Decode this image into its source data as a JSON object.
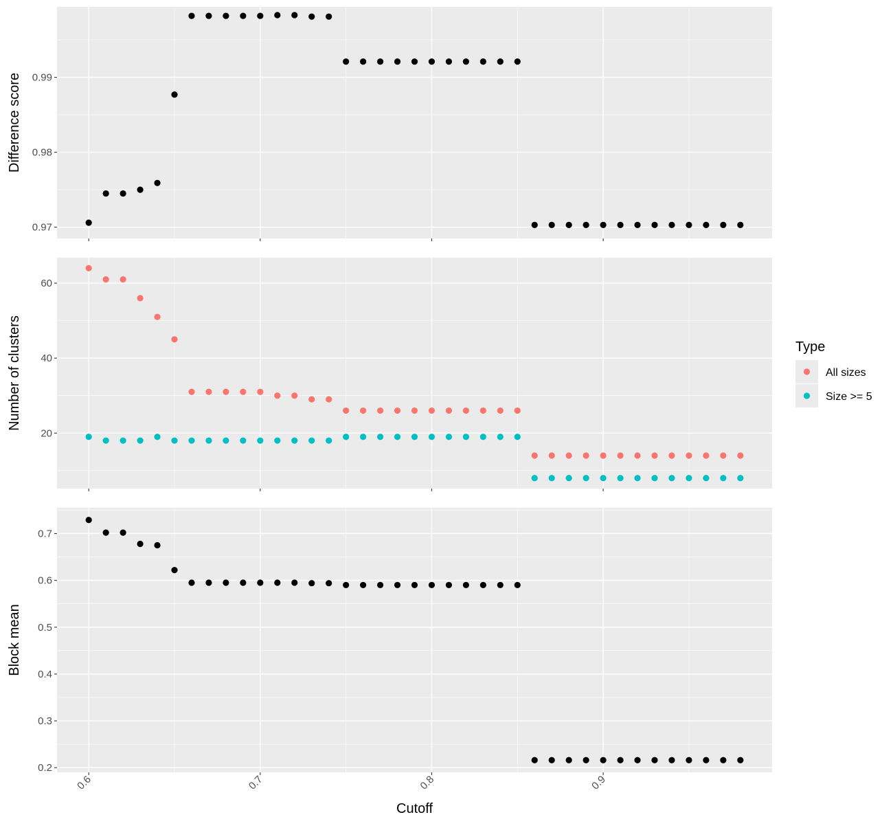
{
  "xlabel": "Cutoff",
  "x_ticks": [
    0.6,
    0.7,
    0.8,
    0.9
  ],
  "x_tick_labels": [
    "0.6",
    "0.7",
    "0.8",
    "0.9"
  ],
  "legend": {
    "title": "Type",
    "entries": [
      {
        "label": "All sizes",
        "color": "#F8766D"
      },
      {
        "label": "Size >= 5",
        "color": "#00BFC4"
      }
    ]
  },
  "colors": {
    "panel_bg": "#EBEBEB",
    "grid": "#FFFFFF",
    "point_default": "#000000"
  },
  "chart_data": [
    {
      "type": "scatter",
      "ylabel": "Difference score",
      "xlim": [
        0.5815,
        0.9985
      ],
      "ylim": [
        0.9685,
        0.9994
      ],
      "y_ticks": [
        0.97,
        0.98,
        0.99
      ],
      "y_tick_labels": [
        "0.97",
        "0.98",
        "0.99"
      ],
      "series": [
        {
          "color": "#000000",
          "points": [
            [
              0.6,
              0.9706
            ],
            [
              0.61,
              0.9745
            ],
            [
              0.62,
              0.9745
            ],
            [
              0.63,
              0.975
            ],
            [
              0.64,
              0.9759
            ],
            [
              0.65,
              0.9877
            ],
            [
              0.66,
              0.9982
            ],
            [
              0.67,
              0.9982
            ],
            [
              0.68,
              0.9982
            ],
            [
              0.69,
              0.9982
            ],
            [
              0.7,
              0.9982
            ],
            [
              0.71,
              0.9983
            ],
            [
              0.72,
              0.9983
            ],
            [
              0.73,
              0.9981
            ],
            [
              0.74,
              0.9981
            ],
            [
              0.75,
              0.9921
            ],
            [
              0.76,
              0.9921
            ],
            [
              0.77,
              0.9921
            ],
            [
              0.78,
              0.9921
            ],
            [
              0.79,
              0.9921
            ],
            [
              0.8,
              0.9921
            ],
            [
              0.81,
              0.9921
            ],
            [
              0.82,
              0.9921
            ],
            [
              0.83,
              0.9921
            ],
            [
              0.84,
              0.9921
            ],
            [
              0.85,
              0.9921
            ],
            [
              0.86,
              0.9703
            ],
            [
              0.87,
              0.9703
            ],
            [
              0.88,
              0.9703
            ],
            [
              0.89,
              0.9703
            ],
            [
              0.9,
              0.9703
            ],
            [
              0.91,
              0.9703
            ],
            [
              0.92,
              0.9703
            ],
            [
              0.93,
              0.9703
            ],
            [
              0.94,
              0.9703
            ],
            [
              0.95,
              0.9703
            ],
            [
              0.96,
              0.9703
            ],
            [
              0.97,
              0.9703
            ],
            [
              0.98,
              0.9703
            ]
          ]
        }
      ]
    },
    {
      "type": "scatter",
      "ylabel": "Number of clusters",
      "xlim": [
        0.5815,
        0.9985
      ],
      "ylim": [
        5.2,
        66.8
      ],
      "y_ticks": [
        20,
        40,
        60
      ],
      "y_tick_labels": [
        "20",
        "40",
        "60"
      ],
      "series": [
        {
          "name": "All sizes",
          "color": "#F8766D",
          "points": [
            [
              0.6,
              64
            ],
            [
              0.61,
              61
            ],
            [
              0.62,
              61
            ],
            [
              0.63,
              56
            ],
            [
              0.64,
              51
            ],
            [
              0.65,
              45
            ],
            [
              0.66,
              31
            ],
            [
              0.67,
              31
            ],
            [
              0.68,
              31
            ],
            [
              0.69,
              31
            ],
            [
              0.7,
              31
            ],
            [
              0.71,
              30
            ],
            [
              0.72,
              30
            ],
            [
              0.73,
              29
            ],
            [
              0.74,
              29
            ],
            [
              0.75,
              26
            ],
            [
              0.76,
              26
            ],
            [
              0.77,
              26
            ],
            [
              0.78,
              26
            ],
            [
              0.79,
              26
            ],
            [
              0.8,
              26
            ],
            [
              0.81,
              26
            ],
            [
              0.82,
              26
            ],
            [
              0.83,
              26
            ],
            [
              0.84,
              26
            ],
            [
              0.85,
              26
            ],
            [
              0.86,
              14
            ],
            [
              0.87,
              14
            ],
            [
              0.88,
              14
            ],
            [
              0.89,
              14
            ],
            [
              0.9,
              14
            ],
            [
              0.91,
              14
            ],
            [
              0.92,
              14
            ],
            [
              0.93,
              14
            ],
            [
              0.94,
              14
            ],
            [
              0.95,
              14
            ],
            [
              0.96,
              14
            ],
            [
              0.97,
              14
            ],
            [
              0.98,
              14
            ]
          ]
        },
        {
          "name": "Size >= 5",
          "color": "#00BFC4",
          "points": [
            [
              0.6,
              19
            ],
            [
              0.61,
              18
            ],
            [
              0.62,
              18
            ],
            [
              0.63,
              18
            ],
            [
              0.64,
              19
            ],
            [
              0.65,
              18
            ],
            [
              0.66,
              18
            ],
            [
              0.67,
              18
            ],
            [
              0.68,
              18
            ],
            [
              0.69,
              18
            ],
            [
              0.7,
              18
            ],
            [
              0.71,
              18
            ],
            [
              0.72,
              18
            ],
            [
              0.73,
              18
            ],
            [
              0.74,
              18
            ],
            [
              0.75,
              19
            ],
            [
              0.76,
              19
            ],
            [
              0.77,
              19
            ],
            [
              0.78,
              19
            ],
            [
              0.79,
              19
            ],
            [
              0.8,
              19
            ],
            [
              0.81,
              19
            ],
            [
              0.82,
              19
            ],
            [
              0.83,
              19
            ],
            [
              0.84,
              19
            ],
            [
              0.85,
              19
            ],
            [
              0.86,
              8
            ],
            [
              0.87,
              8
            ],
            [
              0.88,
              8
            ],
            [
              0.89,
              8
            ],
            [
              0.9,
              8
            ],
            [
              0.91,
              8
            ],
            [
              0.92,
              8
            ],
            [
              0.93,
              8
            ],
            [
              0.94,
              8
            ],
            [
              0.95,
              8
            ],
            [
              0.96,
              8
            ],
            [
              0.97,
              8
            ],
            [
              0.98,
              8
            ]
          ]
        }
      ]
    },
    {
      "type": "scatter",
      "ylabel": "Block mean",
      "xlim": [
        0.5815,
        0.9985
      ],
      "ylim": [
        0.19,
        0.755
      ],
      "y_ticks": [
        0.2,
        0.3,
        0.4,
        0.5,
        0.6,
        0.7
      ],
      "y_tick_labels": [
        "0.2",
        "0.3",
        "0.4",
        "0.5",
        "0.6",
        "0.7"
      ],
      "series": [
        {
          "color": "#000000",
          "points": [
            [
              0.6,
              0.729
            ],
            [
              0.61,
              0.702
            ],
            [
              0.62,
              0.702
            ],
            [
              0.63,
              0.678
            ],
            [
              0.64,
              0.675
            ],
            [
              0.65,
              0.622
            ],
            [
              0.66,
              0.595
            ],
            [
              0.67,
              0.595
            ],
            [
              0.68,
              0.595
            ],
            [
              0.69,
              0.595
            ],
            [
              0.7,
              0.595
            ],
            [
              0.71,
              0.595
            ],
            [
              0.72,
              0.595
            ],
            [
              0.73,
              0.594
            ],
            [
              0.74,
              0.594
            ],
            [
              0.75,
              0.59
            ],
            [
              0.76,
              0.59
            ],
            [
              0.77,
              0.59
            ],
            [
              0.78,
              0.59
            ],
            [
              0.79,
              0.59
            ],
            [
              0.8,
              0.59
            ],
            [
              0.81,
              0.59
            ],
            [
              0.82,
              0.59
            ],
            [
              0.83,
              0.59
            ],
            [
              0.84,
              0.59
            ],
            [
              0.85,
              0.59
            ],
            [
              0.86,
              0.216
            ],
            [
              0.87,
              0.216
            ],
            [
              0.88,
              0.216
            ],
            [
              0.89,
              0.216
            ],
            [
              0.9,
              0.216
            ],
            [
              0.91,
              0.216
            ],
            [
              0.92,
              0.216
            ],
            [
              0.93,
              0.216
            ],
            [
              0.94,
              0.216
            ],
            [
              0.95,
              0.216
            ],
            [
              0.96,
              0.216
            ],
            [
              0.97,
              0.216
            ],
            [
              0.98,
              0.216
            ]
          ]
        }
      ]
    }
  ]
}
